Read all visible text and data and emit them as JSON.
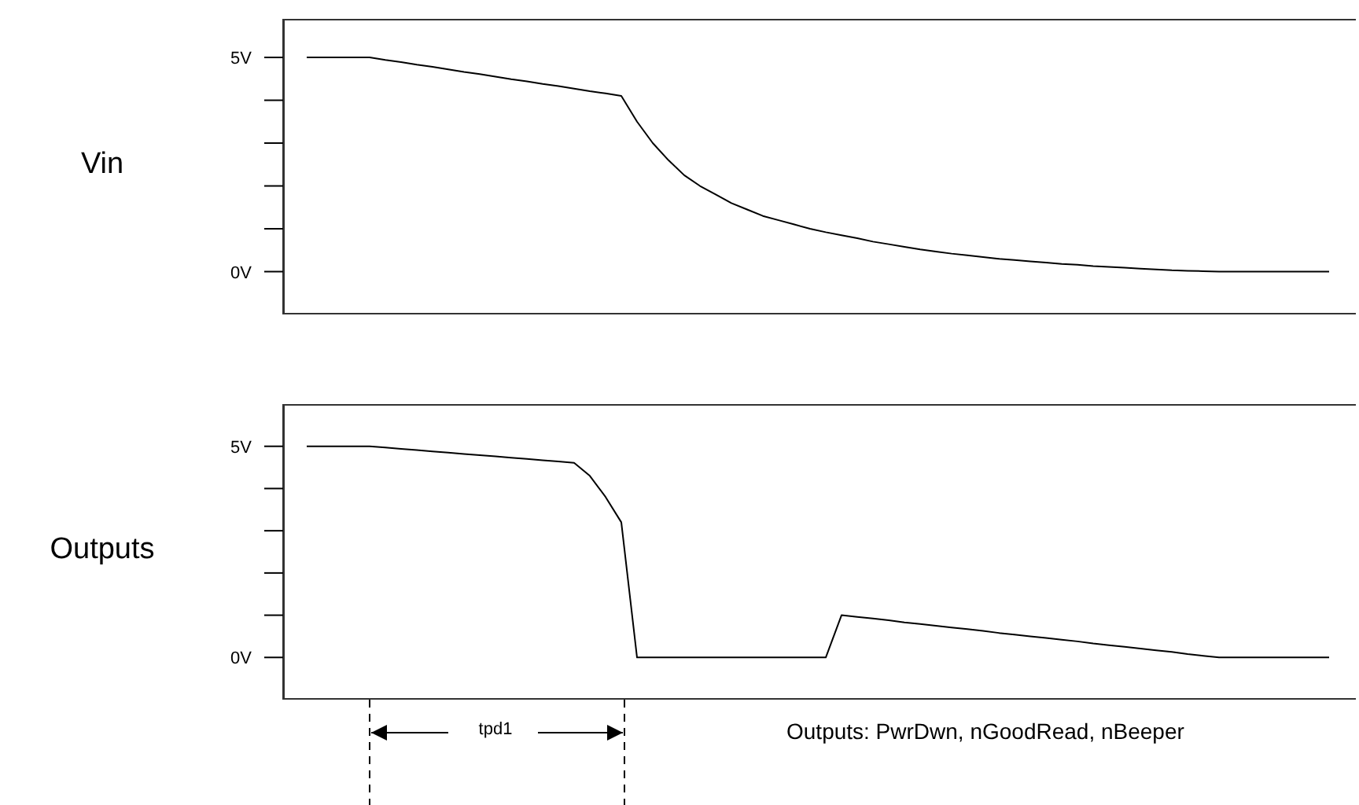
{
  "chart_data": [
    {
      "type": "line",
      "ylabel": "Vin",
      "ylim": [
        -1,
        5.9
      ],
      "yticks": [
        {
          "value": 0,
          "label": "0V"
        },
        {
          "value": 1,
          "label": null
        },
        {
          "value": 2,
          "label": null
        },
        {
          "value": 3,
          "label": null
        },
        {
          "value": 4,
          "label": null
        },
        {
          "value": 5,
          "label": "5V"
        }
      ],
      "tick_labels": "y",
      "marker": "none",
      "line_style": "solid",
      "categories": [
        null,
        null,
        null,
        null,
        null,
        null,
        null,
        null,
        null,
        null,
        null,
        null,
        null,
        null,
        null,
        null,
        null,
        null,
        null,
        null,
        null,
        null,
        null,
        null,
        null,
        null,
        null,
        null,
        null,
        null,
        null,
        null,
        null,
        null,
        null,
        null,
        null,
        null,
        null,
        null,
        null,
        null,
        null,
        null,
        null,
        null,
        null,
        null,
        null,
        null,
        null,
        null,
        null,
        null,
        null,
        null,
        null,
        null,
        null,
        null,
        null,
        null,
        null,
        null,
        null,
        null
      ],
      "series": [
        {
          "color": "#000000",
          "values": [
            5,
            5,
            5,
            5,
            5,
            4.94,
            4.89,
            4.83,
            4.78,
            4.72,
            4.66,
            4.61,
            4.55,
            4.49,
            4.44,
            4.38,
            4.33,
            4.27,
            4.21,
            4.16,
            4.1,
            3.5,
            3.0,
            2.6,
            2.25,
            2.0,
            1.8,
            1.6,
            1.45,
            1.3,
            1.2,
            1.1,
            1.0,
            0.92,
            0.85,
            0.78,
            0.7,
            0.64,
            0.58,
            0.52,
            0.47,
            0.42,
            0.38,
            0.34,
            0.3,
            0.27,
            0.24,
            0.21,
            0.18,
            0.16,
            0.13,
            0.11,
            0.09,
            0.07,
            0.05,
            0.03,
            0.02,
            0.01,
            0,
            0,
            0,
            0,
            0,
            0,
            0,
            0
          ]
        }
      ]
    },
    {
      "type": "line",
      "ylabel": "Outputs",
      "ylim": [
        -1,
        6
      ],
      "yticks": [
        {
          "value": 0,
          "label": "0V"
        },
        {
          "value": 1,
          "label": null
        },
        {
          "value": 2,
          "label": null
        },
        {
          "value": 3,
          "label": null
        },
        {
          "value": 4,
          "label": null
        },
        {
          "value": 5,
          "label": "5V"
        }
      ],
      "tick_labels": "y",
      "marker": "none",
      "line_style": "solid",
      "annotations": [
        "tpd1",
        "Outputs: PwrDwn, nGoodRead, nBeeper"
      ],
      "categories": [
        null,
        null,
        null,
        null,
        null,
        null,
        null,
        null,
        null,
        null,
        null,
        null,
        null,
        null,
        null,
        null,
        null,
        null,
        null,
        null,
        null,
        null,
        null,
        null,
        null,
        null,
        null,
        null,
        null,
        null,
        null,
        null,
        null,
        null,
        null,
        null,
        null,
        null,
        null,
        null,
        null,
        null,
        null,
        null,
        null,
        null,
        null,
        null,
        null,
        null,
        null,
        null,
        null,
        null,
        null,
        null,
        null,
        null,
        null,
        null,
        null,
        null,
        null,
        null,
        null,
        null
      ],
      "series": [
        {
          "color": "#000000",
          "values": [
            5,
            5,
            5,
            5,
            5,
            4.97,
            4.94,
            4.91,
            4.88,
            4.85,
            4.82,
            4.79,
            4.76,
            4.73,
            4.7,
            4.67,
            4.64,
            4.61,
            4.3,
            3.8,
            3.2,
            0,
            0,
            0,
            0,
            0,
            0,
            0,
            0,
            0,
            0,
            0,
            0,
            0,
            1.0,
            0.96,
            0.92,
            0.88,
            0.83,
            0.79,
            0.75,
            0.71,
            0.67,
            0.63,
            0.58,
            0.54,
            0.5,
            0.46,
            0.42,
            0.38,
            0.33,
            0.29,
            0.25,
            0.21,
            0.17,
            0.13,
            0.08,
            0.04,
            0,
            0,
            0,
            0,
            0,
            0,
            0,
            0
          ]
        }
      ]
    }
  ]
}
